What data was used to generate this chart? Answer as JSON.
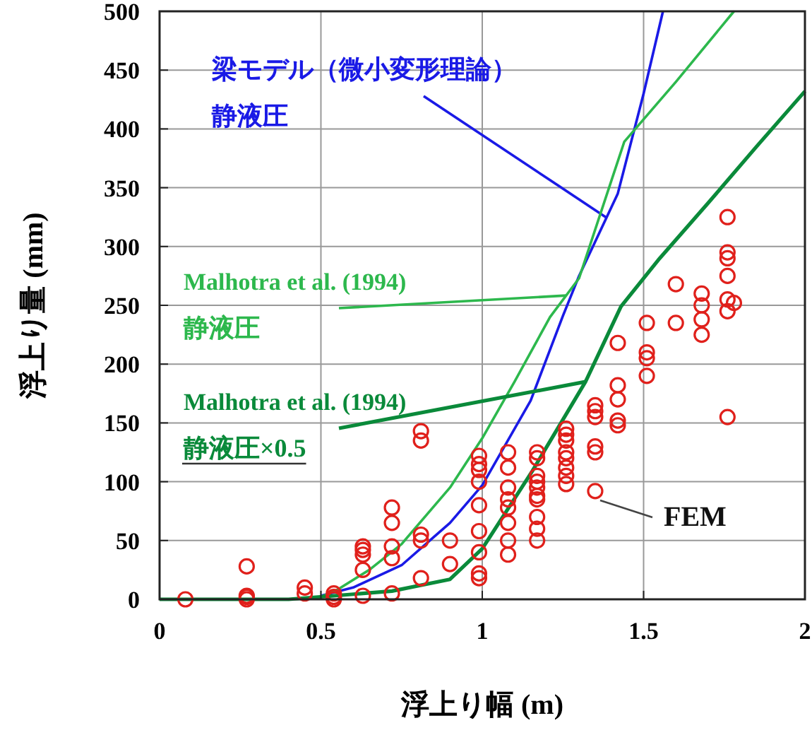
{
  "chart_data": {
    "type": "line",
    "xlabel": "浮上り幅 (m)",
    "ylabel": "浮上り量 (mm)",
    "xlim": [
      0,
      2
    ],
    "ylim": [
      0,
      500
    ],
    "xticks": [
      0,
      0.5,
      1,
      1.5,
      2
    ],
    "yticks": [
      0,
      50,
      100,
      150,
      200,
      250,
      300,
      350,
      400,
      450,
      500
    ],
    "grid": true,
    "marker": "none",
    "series": [
      {
        "name": "梁モデル（微小変形理論）静液圧",
        "color": "#1a1ae6",
        "x": [
          0.5,
          0.6,
          0.75,
          0.9,
          1.0,
          1.15,
          1.25,
          1.3,
          1.42,
          1.5,
          1.56
        ],
        "values": [
          3,
          10,
          29,
          65,
          97,
          169,
          241,
          275,
          345,
          430,
          500
        ]
      },
      {
        "name": "Malhotra et al. (1994) 静液圧",
        "color": "#2db84d",
        "x": [
          0.5,
          0.55,
          0.65,
          0.75,
          0.9,
          1.0,
          1.1,
          1.21,
          1.3,
          1.44,
          1.6,
          1.78
        ],
        "values": [
          2,
          8,
          25,
          47,
          95,
          137,
          185,
          240,
          273,
          389,
          440,
          500
        ]
      },
      {
        "name": "Malhotra et al. (1994) 静液圧×0.5",
        "color": "#0a8a3a",
        "x": [
          0,
          0.4,
          0.54,
          0.72,
          0.9,
          1.0,
          1.155,
          1.32,
          1.43,
          1.55,
          1.7,
          1.85,
          2.0
        ],
        "values": [
          0,
          0,
          3,
          7,
          17,
          43,
          109,
          185,
          249,
          290,
          337,
          385,
          432
        ]
      },
      {
        "name": "FEM",
        "type": "scatter",
        "marker": "circle",
        "color": "#e0201b",
        "x": [
          0.08,
          0.27,
          0.27,
          0.27,
          0.27,
          0.45,
          0.45,
          0.54,
          0.54,
          0.54,
          0.63,
          0.63,
          0.63,
          0.63,
          0.63,
          0.72,
          0.72,
          0.72,
          0.72,
          0.72,
          0.81,
          0.81,
          0.81,
          0.81,
          0.81,
          0.9,
          0.9,
          0.99,
          0.99,
          0.99,
          0.99,
          0.99,
          0.99,
          0.99,
          0.99,
          0.99,
          1.08,
          1.08,
          1.08,
          1.08,
          1.08,
          1.08,
          1.08,
          1.08,
          1.17,
          1.17,
          1.17,
          1.17,
          1.17,
          1.17,
          1.17,
          1.17,
          1.17,
          1.17,
          1.26,
          1.26,
          1.26,
          1.26,
          1.26,
          1.26,
          1.26,
          1.26,
          1.35,
          1.35,
          1.35,
          1.35,
          1.35,
          1.35,
          1.42,
          1.42,
          1.42,
          1.42,
          1.42,
          1.51,
          1.51,
          1.51,
          1.51,
          1.6,
          1.6,
          1.68,
          1.68,
          1.68,
          1.68,
          1.76,
          1.76,
          1.76,
          1.76,
          1.76,
          1.76,
          1.76,
          1.78
        ],
        "values": [
          0,
          28,
          2,
          0,
          3,
          10,
          5,
          5,
          2,
          0,
          45,
          42,
          38,
          25,
          3,
          78,
          65,
          45,
          35,
          5,
          143,
          135,
          55,
          50,
          18,
          50,
          30,
          122,
          115,
          110,
          100,
          80,
          58,
          40,
          22,
          18,
          125,
          112,
          95,
          85,
          78,
          65,
          50,
          38,
          125,
          120,
          105,
          100,
          95,
          88,
          85,
          70,
          60,
          50,
          145,
          140,
          135,
          125,
          120,
          112,
          105,
          98,
          165,
          160,
          155,
          130,
          125,
          92,
          218,
          182,
          170,
          152,
          148,
          235,
          210,
          205,
          190,
          268,
          235,
          260,
          250,
          238,
          225,
          325,
          295,
          290,
          275,
          255,
          245,
          155,
          252
        ]
      }
    ]
  }
}
